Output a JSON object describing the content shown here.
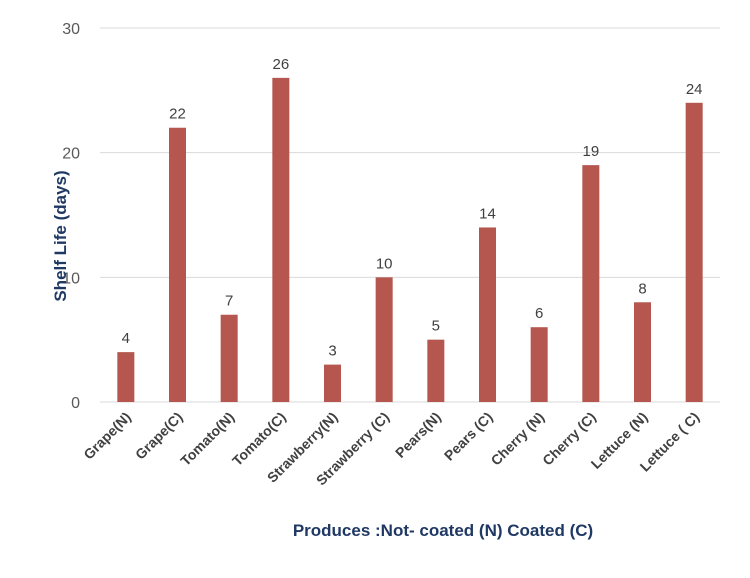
{
  "chart_data": {
    "type": "bar",
    "title": "",
    "xlabel": "Produces :Not- coated (N) Coated (C)",
    "ylabel": "Shelf Life (days)",
    "ylim": [
      0,
      30
    ],
    "yticks": [
      0,
      10,
      20,
      30
    ],
    "grid": true,
    "categories": [
      "Grape(N)",
      "Grape(C)",
      "Tomato(N)",
      "Tomato(C)",
      "Strawberry(N)",
      "Strawberry (C)",
      "Pears(N)",
      "Pears (C)",
      "Cherry (N)",
      "Cherry (C)",
      "Lettuce (N)",
      "Lettuce ( C)"
    ],
    "values": [
      4,
      22,
      7,
      26,
      3,
      10,
      5,
      14,
      6,
      19,
      8,
      24
    ],
    "bar_color": "#b5574f",
    "grid_color": "#d9d9d9"
  }
}
